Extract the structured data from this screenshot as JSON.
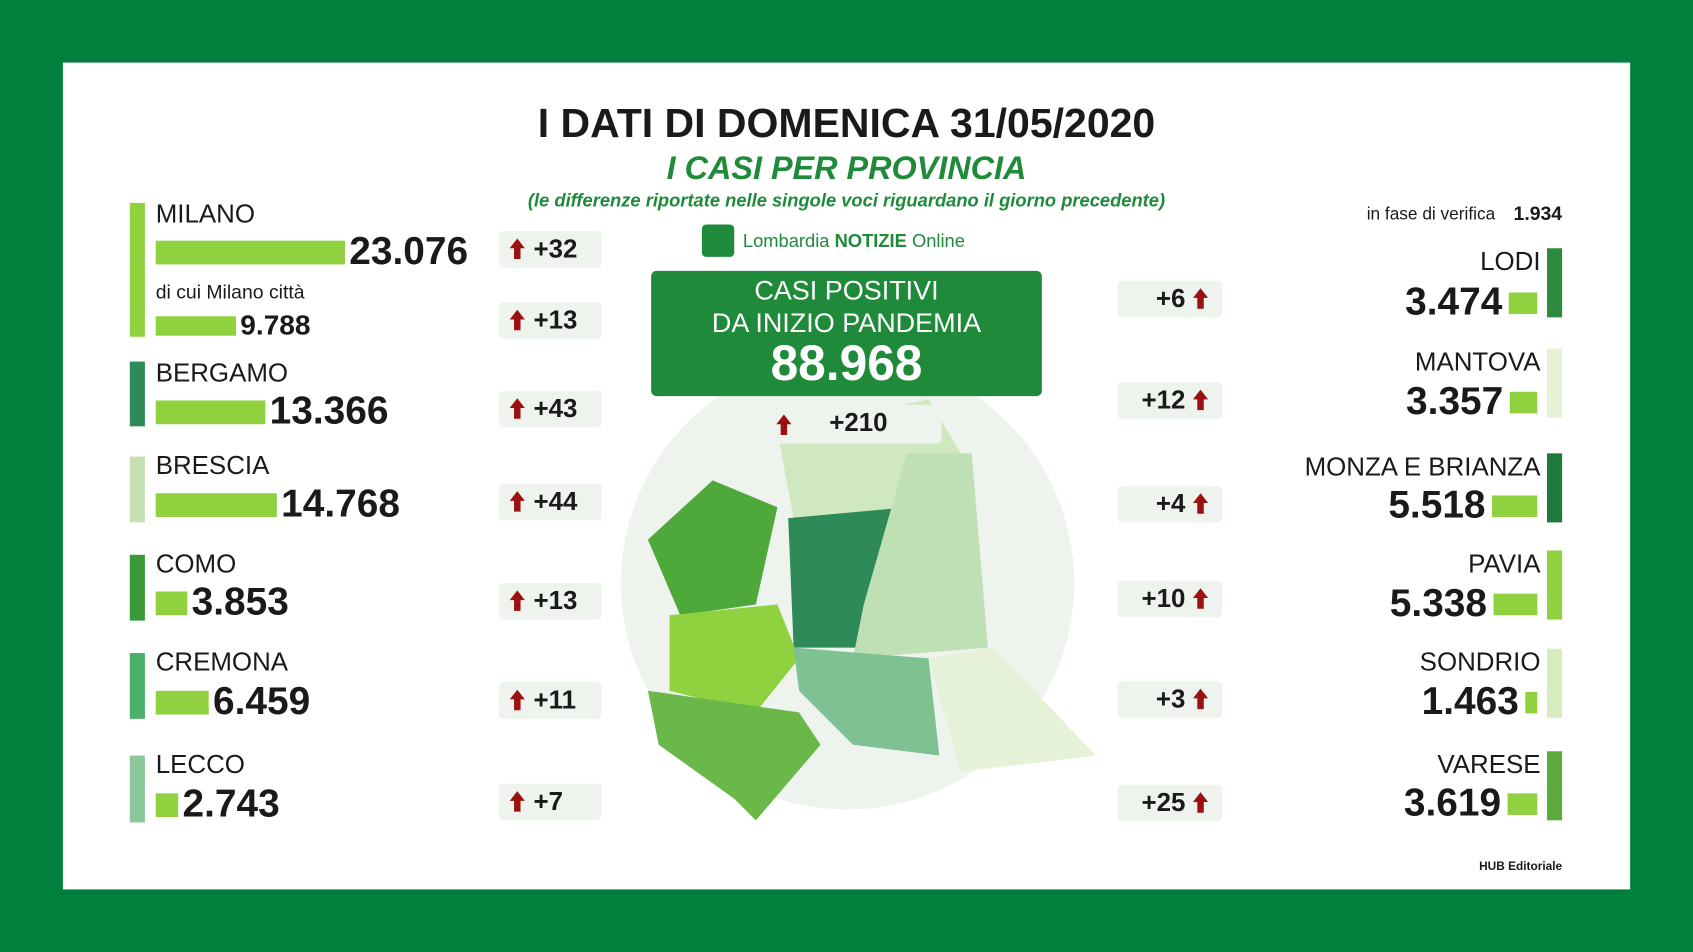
{
  "header": {
    "title": "I DATI DI DOMENICA 31/05/2020",
    "subtitle": "I CASI PER PROVINCIA",
    "note": "(le differenze riportate nelle singole voci riguardano il giorno precedente)"
  },
  "logo": {
    "part1": "Lombardia",
    "part2": "NOTIZIE",
    "part3": "Online"
  },
  "total": {
    "line1": "CASI POSITIVI",
    "line2": "DA INIZIO PANDEMIA",
    "value": "88.968",
    "change": "+210"
  },
  "verification": {
    "label": "in fase di verifica",
    "value": "1.934"
  },
  "left_provinces": [
    {
      "name": "MILANO",
      "value": 23076,
      "value_label": "23.076",
      "change": "+32",
      "color": "#8fd13f"
    },
    {
      "name": "di cui Milano città",
      "value": 9788,
      "value_label": "9.788",
      "change": "+13",
      "color": "#8fd13f"
    },
    {
      "name": "BERGAMO",
      "value": 13366,
      "value_label": "13.366",
      "change": "+43",
      "color": "#2e8b57"
    },
    {
      "name": "BRESCIA",
      "value": 14768,
      "value_label": "14.768",
      "change": "+44",
      "color": "#c5e0b4"
    },
    {
      "name": "COMO",
      "value": 3853,
      "value_label": "3.853",
      "change": "+13",
      "color": "#3a9a3a"
    },
    {
      "name": "CREMONA",
      "value": 6459,
      "value_label": "6.459",
      "change": "+11",
      "color": "#4caf6a"
    },
    {
      "name": "LECCO",
      "value": 2743,
      "value_label": "2.743",
      "change": "+7",
      "color": "#8cc79a"
    }
  ],
  "right_provinces": [
    {
      "name": "LODI",
      "value": 3474,
      "value_label": "3.474",
      "change": "+6",
      "color": "#2e8b3e"
    },
    {
      "name": "MANTOVA",
      "value": 3357,
      "value_label": "3.357",
      "change": "+12",
      "color": "#e5f2d8"
    },
    {
      "name": "MONZA E BRIANZA",
      "value": 5518,
      "value_label": "5.518",
      "change": "+4",
      "color": "#1e7a3c"
    },
    {
      "name": "PAVIA",
      "value": 5338,
      "value_label": "5.338",
      "change": "+10",
      "color": "#8fd13f"
    },
    {
      "name": "SONDRIO",
      "value": 1463,
      "value_label": "1.463",
      "change": "+3",
      "color": "#d6ecc0"
    },
    {
      "name": "VARESE",
      "value": 3619,
      "value_label": "3.619",
      "change": "+25",
      "color": "#5bab3c"
    }
  ],
  "credit": "HUB Editoriale"
}
